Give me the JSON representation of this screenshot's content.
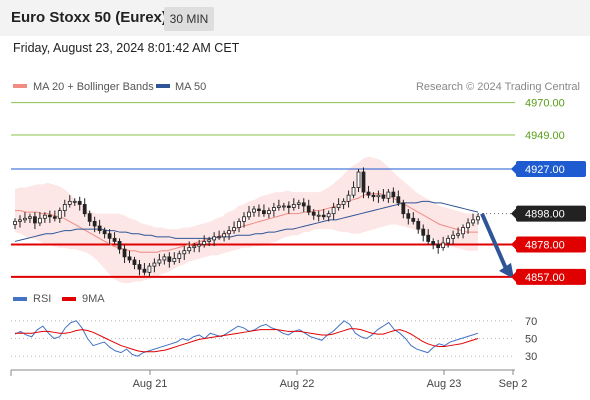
{
  "header": {
    "title": "Euro Stoxx 50 (Eurex)",
    "timeframe": "30 MIN",
    "datetime": "Friday, August 23, 2024 8:01:42 AM CET"
  },
  "legend": {
    "items": [
      {
        "label": "MA 20 + Bollinger Bands",
        "color": "#f28b82"
      },
      {
        "label": "MA 50",
        "color": "#2f5597"
      }
    ],
    "credit": "Research © 2024 Trading Central"
  },
  "rsi_legend": {
    "items": [
      {
        "label": "RSI",
        "color": "#4472c4"
      },
      {
        "label": "9MA",
        "color": "#e00000"
      }
    ]
  },
  "chart_data": {
    "type": "candlestick",
    "y_ticks_shown": [
      {
        "value": 4970.0,
        "label": "4970.00",
        "style": "green-line"
      },
      {
        "value": 4949.0,
        "label": "4949.00",
        "style": "green-line"
      },
      {
        "value": 4927.0,
        "label": "4927.00",
        "style": "resistance-blue"
      },
      {
        "value": 4898.0,
        "label": "4898.00",
        "style": "last-price"
      },
      {
        "value": 4878.0,
        "label": "4878.00",
        "style": "support-red"
      },
      {
        "value": 4857.0,
        "label": "4857.00",
        "style": "support-red"
      }
    ],
    "price_range": [
      4855,
      4973
    ],
    "x_labels": [
      "Aug 21",
      "Aug 22",
      "Aug 23",
      "Sep 2"
    ],
    "x_label_positions": [
      0.28,
      0.57,
      0.86,
      1.0
    ],
    "close_series": [
      4893,
      4894,
      4895,
      4896,
      4892,
      4895,
      4897,
      4896,
      4895,
      4900,
      4904,
      4906,
      4906,
      4904,
      4898,
      4893,
      4890,
      4887,
      4885,
      4882,
      4880,
      4875,
      4870,
      4868,
      4865,
      4862,
      4860,
      4864,
      4866,
      4868,
      4870,
      4867,
      4869,
      4872,
      4874,
      4876,
      4877,
      4878,
      4880,
      4881,
      4883,
      4883,
      4885,
      4887,
      4889,
      4893,
      4896,
      4899,
      4901,
      4900,
      4898,
      4900,
      4902,
      4903,
      4903,
      4902,
      4904,
      4905,
      4903,
      4899,
      4897,
      4897,
      4896,
      4898,
      4902,
      4904,
      4906,
      4910,
      4915,
      4925,
      4912,
      4910,
      4909,
      4910,
      4908,
      4912,
      4909,
      4905,
      4898,
      4895,
      4893,
      4888,
      4884,
      4880,
      4878,
      4876,
      4879,
      4882,
      4884,
      4885,
      4889,
      4892,
      4894,
      4896
    ],
    "ma20": [
      4900,
      4900,
      4899,
      4899,
      4899,
      4898,
      4898,
      4897,
      4896,
      4895,
      4893,
      4891,
      4889,
      4887,
      4885,
      4883,
      4881,
      4879,
      4877,
      4876,
      4875,
      4874,
      4874,
      4873,
      4873,
      4873,
      4873,
      4874,
      4874,
      4875,
      4876,
      4877,
      4878,
      4879,
      4880,
      4881,
      4882,
      4883,
      4884,
      4886,
      4887,
      4889,
      4890,
      4891,
      4892,
      4893,
      4894,
      4895,
      4896,
      4897,
      4898,
      4898,
      4898,
      4899,
      4899,
      4900,
      4900,
      4901,
      4902,
      4903,
      4904,
      4906,
      4907,
      4908,
      4910,
      4911,
      4911,
      4911,
      4910,
      4909,
      4907,
      4905,
      4903,
      4901,
      4899,
      4897,
      4895,
      4893,
      4891,
      4890,
      4889,
      4888,
      4887,
      4886,
      4886,
      4886
    ],
    "ma50": [
      4880,
      4881,
      4882,
      4883,
      4884,
      4885,
      4885,
      4886,
      4887,
      4887,
      4888,
      4888,
      4888,
      4888,
      4888,
      4887,
      4887,
      4886,
      4886,
      4885,
      4885,
      4884,
      4884,
      4883,
      4883,
      4883,
      4882,
      4882,
      4882,
      4882,
      4882,
      4882,
      4882,
      4883,
      4883,
      4883,
      4884,
      4884,
      4884,
      4885,
      4885,
      4886,
      4886,
      4887,
      4888,
      4888,
      4889,
      4890,
      4891,
      4892,
      4893,
      4894,
      4894,
      4895,
      4896,
      4897,
      4898,
      4899,
      4900,
      4901,
      4902,
      4903,
      4904,
      4905,
      4905,
      4905,
      4906,
      4906,
      4905,
      4905,
      4904,
      4903,
      4902,
      4901,
      4900,
      4899
    ],
    "forecast": {
      "from": 4898,
      "to": 4857,
      "direction": "down"
    },
    "rsi": {
      "ticks": [
        70,
        50,
        30
      ],
      "range": [
        20,
        80
      ],
      "rsi_values": [
        55,
        58,
        54,
        52,
        60,
        64,
        56,
        50,
        52,
        62,
        68,
        70,
        62,
        50,
        42,
        44,
        46,
        40,
        36,
        34,
        38,
        32,
        30,
        34,
        36,
        38,
        40,
        42,
        44,
        46,
        50,
        48,
        52,
        54,
        50,
        56,
        54,
        52,
        56,
        60,
        64,
        62,
        58,
        60,
        64,
        66,
        62,
        60,
        56,
        54,
        58,
        60,
        56,
        52,
        50,
        48,
        54,
        58,
        64,
        70,
        66,
        56,
        52,
        50,
        54,
        60,
        64,
        68,
        60,
        56,
        50,
        42,
        38,
        36,
        34,
        40,
        44,
        42,
        46,
        48,
        50,
        52,
        54,
        56
      ],
      "ma_values": [
        56,
        56,
        56,
        56,
        57,
        58,
        58,
        57,
        56,
        56,
        57,
        59,
        60,
        59,
        57,
        54,
        51,
        48,
        45,
        42,
        40,
        38,
        36,
        35,
        35,
        35,
        36,
        37,
        39,
        41,
        43,
        45,
        47,
        49,
        50,
        51,
        52,
        53,
        54,
        55,
        56,
        57,
        58,
        59,
        60,
        60,
        60,
        60,
        59,
        58,
        58,
        58,
        57,
        56,
        55,
        54,
        54,
        55,
        57,
        59,
        61,
        61,
        60,
        58,
        56,
        55,
        55,
        57,
        59,
        60,
        58,
        55,
        51,
        47,
        44,
        42,
        41,
        41,
        42,
        43,
        44,
        46,
        48,
        50
      ]
    }
  }
}
